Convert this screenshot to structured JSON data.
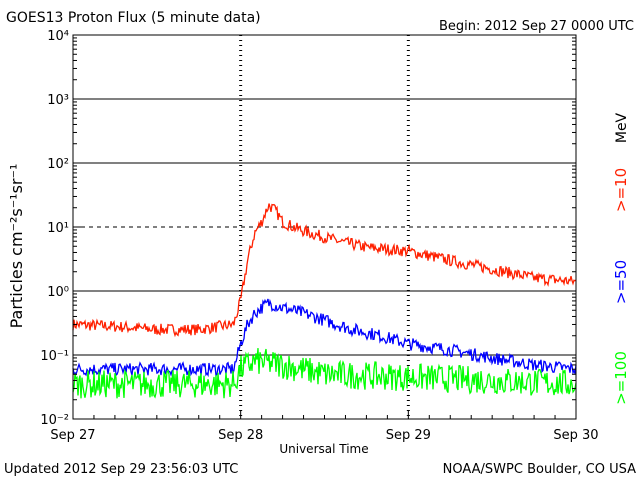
{
  "title": "GOES13 Proton Flux (5 minute data)",
  "begin": "Begin: 2012 Sep 27 0000 UTC",
  "updated": "Updated 2012 Sep 29 23:56:03 UTC",
  "credit": "NOAA/SWPC Boulder, CO USA",
  "ylabel": "Particles cm⁻²s⁻¹sr⁻¹",
  "xlabel": "Universal Time",
  "energy_unit": "MeV",
  "chart_data": {
    "type": "line",
    "title": "GOES13 Proton Flux (5 minute data)",
    "xlabel": "Universal Time",
    "ylabel": "Particles cm-2 s-1 sr-1",
    "yscale": "log",
    "ylim": [
      0.01,
      10000
    ],
    "xlim": [
      "2012-09-27 00:00",
      "2012-09-30 00:00"
    ],
    "x_ticks": [
      "Sep 27",
      "Sep 28",
      "Sep 29",
      "Sep 30"
    ],
    "y_ticks": [
      "10⁻²",
      "10⁻¹",
      "10⁰",
      "10¹",
      "10²",
      "10³",
      "10⁴"
    ],
    "y_tick_values": [
      0.01,
      0.1,
      1,
      10,
      100,
      1000,
      10000
    ],
    "grid": "solid horizontal lines at each decade; dashed line at 10",
    "series": [
      {
        "name": ">=10",
        "color": "#ff2000",
        "x": [
          "2012-09-27 00:00",
          "2012-09-27 06:00",
          "2012-09-27 12:00",
          "2012-09-27 18:00",
          "2012-09-27 23:00",
          "2012-09-28 00:00",
          "2012-09-28 01:00",
          "2012-09-28 02:00",
          "2012-09-28 03:00",
          "2012-09-28 04:00",
          "2012-09-28 05:00",
          "2012-09-28 06:00",
          "2012-09-28 08:00",
          "2012-09-28 10:00",
          "2012-09-28 14:00",
          "2012-09-28 18:00",
          "2012-09-29 00:00",
          "2012-09-29 06:00",
          "2012-09-29 12:00",
          "2012-09-29 18:00",
          "2012-09-30 00:00"
        ],
        "values": [
          0.3,
          0.28,
          0.25,
          0.25,
          0.3,
          0.7,
          3.0,
          8.0,
          12.0,
          22.0,
          18.0,
          12.0,
          9.5,
          8.0,
          6.0,
          4.8,
          4.2,
          3.0,
          2.2,
          1.6,
          1.4
        ]
      },
      {
        "name": ">=50",
        "color": "#0000ff",
        "x": [
          "2012-09-27 00:00",
          "2012-09-27 12:00",
          "2012-09-27 23:00",
          "2012-09-28 00:00",
          "2012-09-28 01:00",
          "2012-09-28 02:00",
          "2012-09-28 03:00",
          "2012-09-28 04:00",
          "2012-09-28 06:00",
          "2012-09-28 09:00",
          "2012-09-28 12:00",
          "2012-09-28 16:00",
          "2012-09-28 20:00",
          "2012-09-29 00:00",
          "2012-09-29 06:00",
          "2012-09-29 12:00",
          "2012-09-29 18:00",
          "2012-09-30 00:00"
        ],
        "values": [
          0.06,
          0.06,
          0.06,
          0.15,
          0.3,
          0.45,
          0.55,
          0.65,
          0.55,
          0.45,
          0.35,
          0.25,
          0.2,
          0.15,
          0.12,
          0.09,
          0.07,
          0.06
        ]
      },
      {
        "name": ">=100",
        "color": "#00ff00",
        "x": [
          "2012-09-27 00:00",
          "2012-09-27 12:00",
          "2012-09-27 23:00",
          "2012-09-28 00:00",
          "2012-09-28 02:00",
          "2012-09-28 06:00",
          "2012-09-28 12:00",
          "2012-09-29 00:00",
          "2012-09-29 12:00",
          "2012-09-30 00:00"
        ],
        "values": [
          0.035,
          0.035,
          0.035,
          0.06,
          0.08,
          0.07,
          0.05,
          0.045,
          0.04,
          0.035
        ]
      }
    ]
  }
}
